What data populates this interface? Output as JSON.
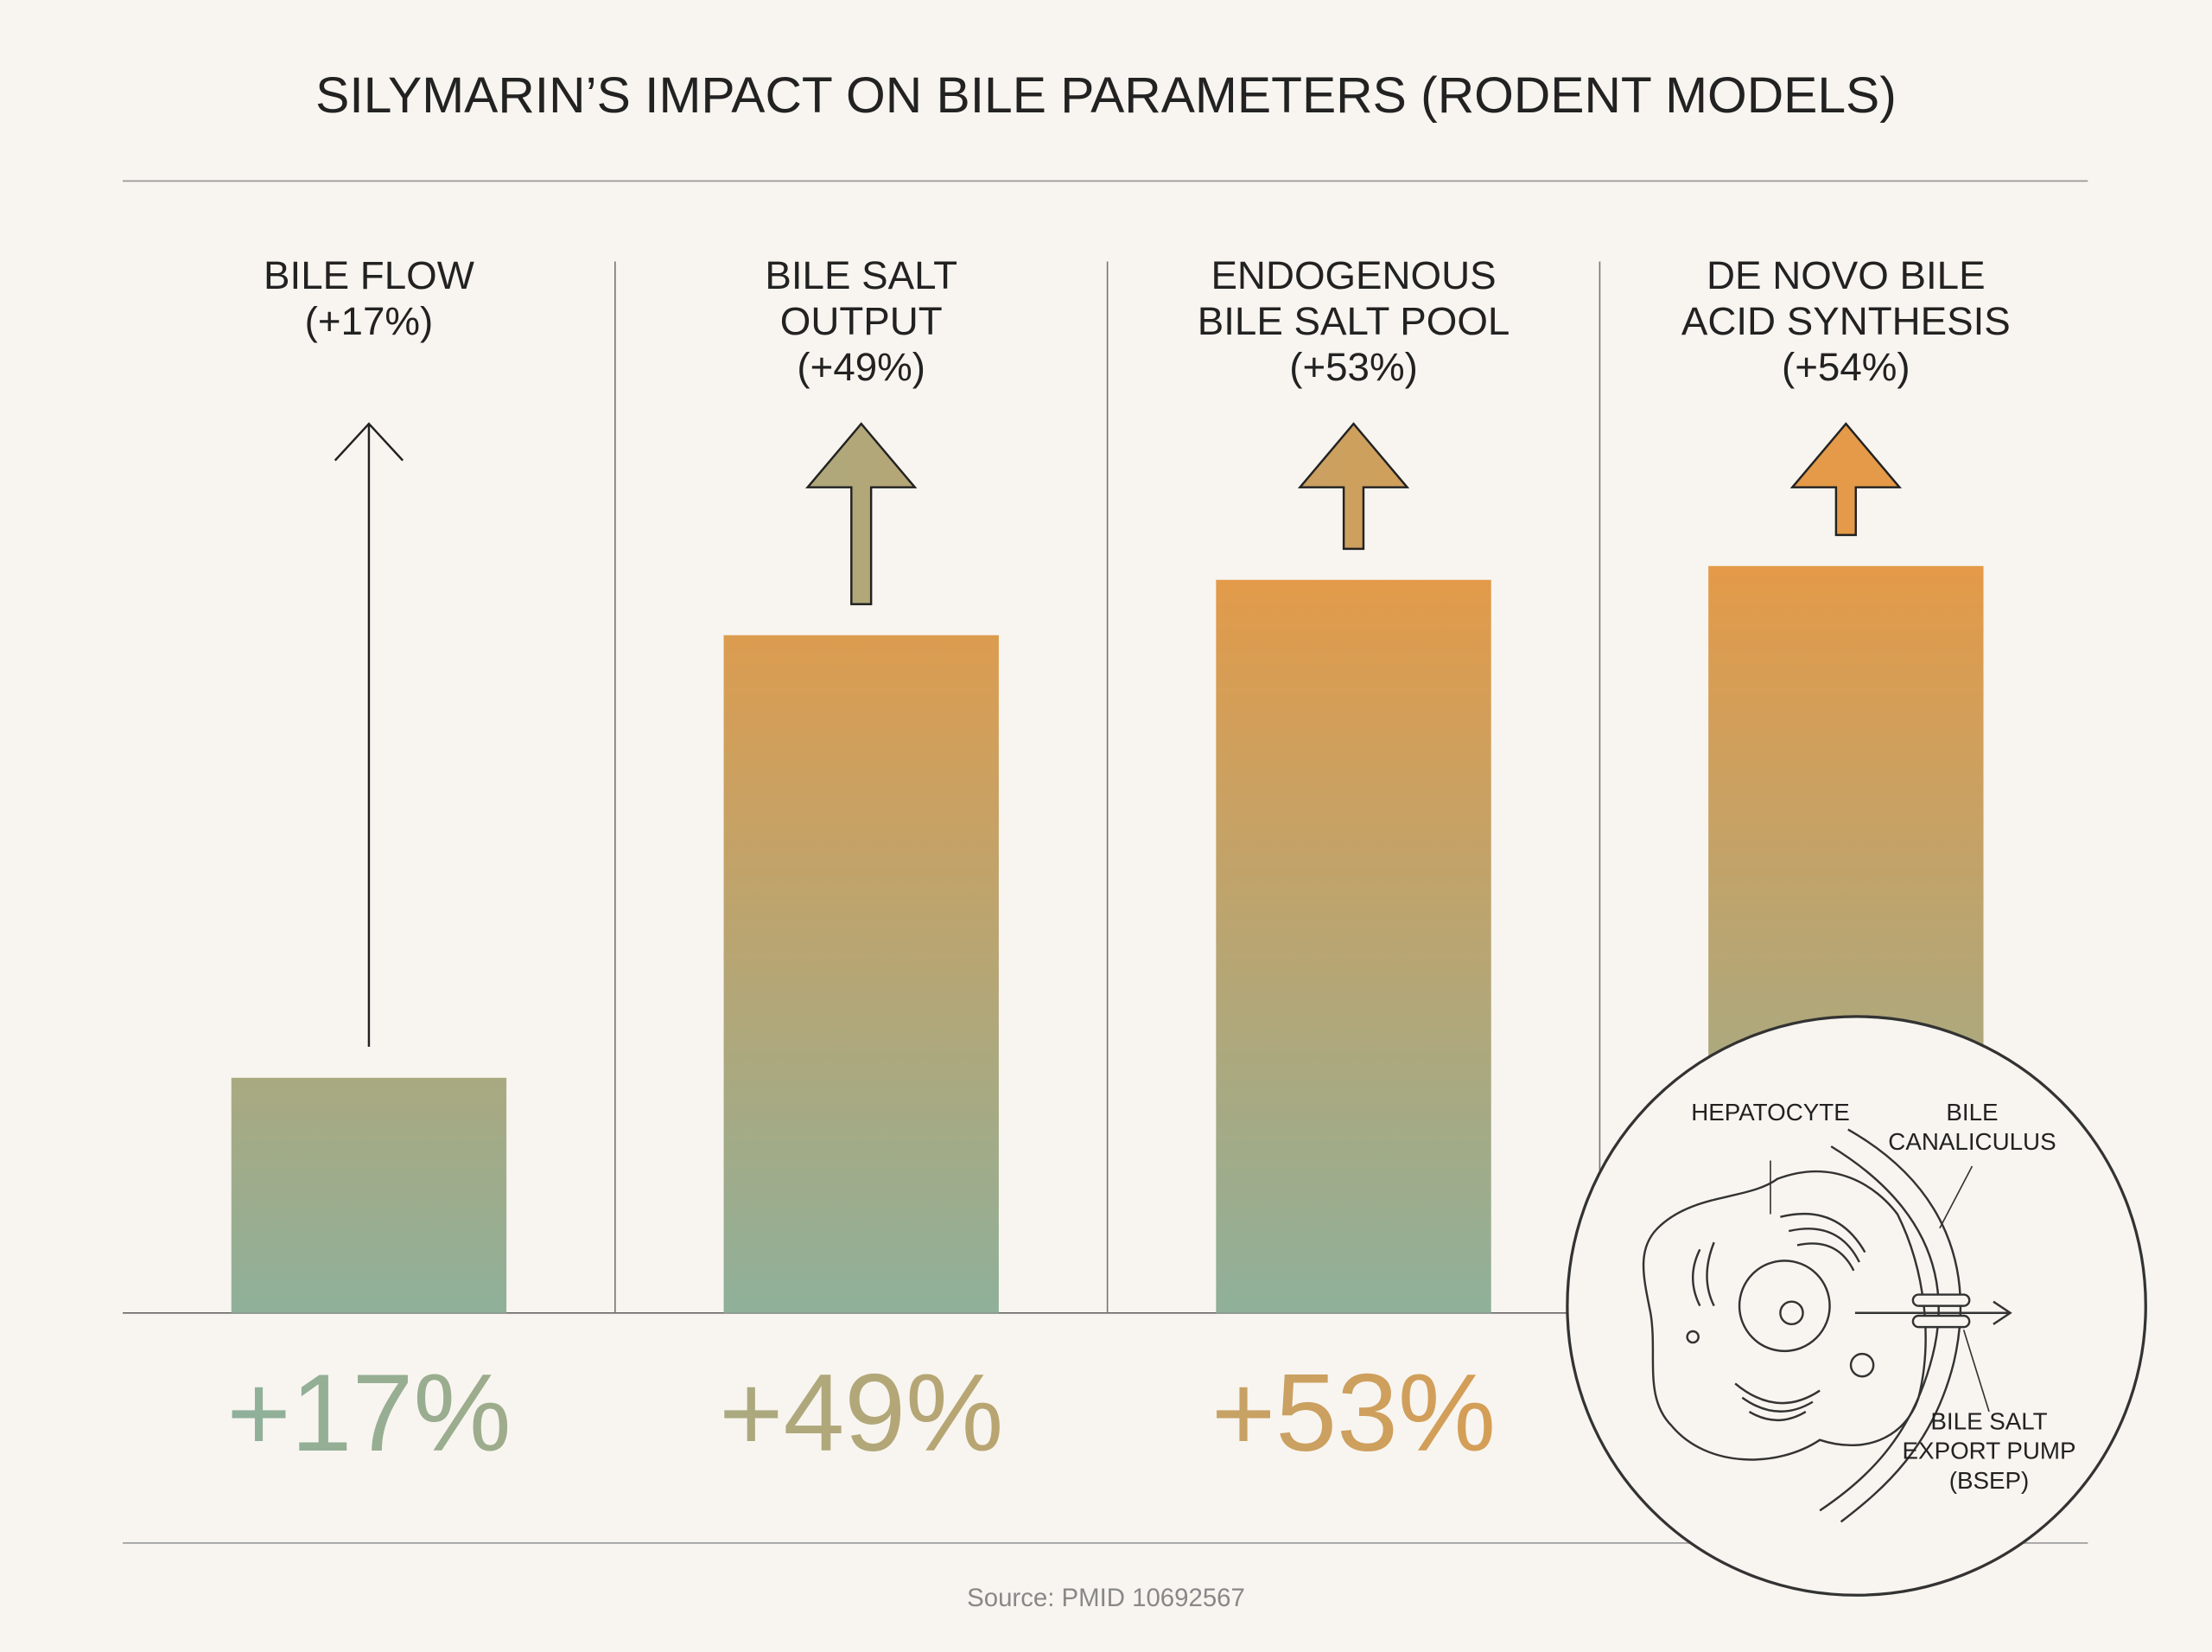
{
  "chart_data": {
    "type": "bar",
    "title": "SILYMARIN’S IMPACT ON BILE PARAMETERS (RODENT MODELS)",
    "categories": [
      [
        "BILE FLOW",
        "(+17%)"
      ],
      [
        "BILE SALT",
        "OUTPUT",
        "(+49%)"
      ],
      [
        "ENDOGENOUS",
        "BILE SALT POOL",
        "(+53%)"
      ],
      [
        "DE NOVO BILE",
        "ACID SYNTHESIS",
        "(+54%)"
      ]
    ],
    "values": [
      17,
      49,
      53,
      54
    ],
    "value_labels": [
      "+17%",
      "+49%",
      "+53%",
      null
    ],
    "ylim": [
      0,
      60
    ],
    "colors": [
      "#8fb09a",
      "#e49a48"
    ],
    "annotations": [
      [
        "HEPATOCYTE"
      ],
      [
        "BILE",
        "CANALICULUS"
      ],
      [
        "BILE SALT",
        "EXPORT PUMP",
        "(BSEP)"
      ]
    ],
    "source": "Source: PMID 10692567"
  }
}
